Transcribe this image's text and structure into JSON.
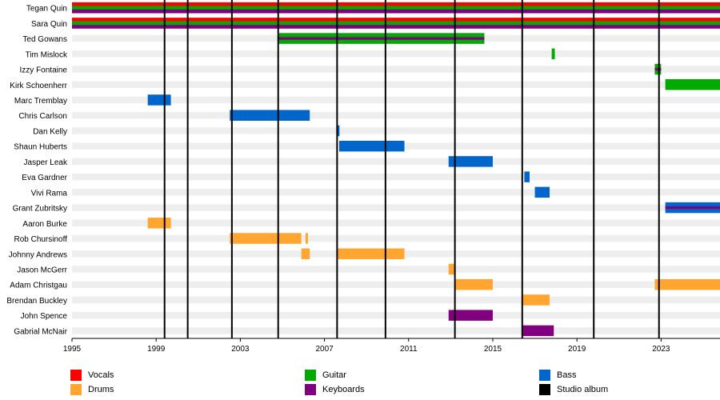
{
  "chart_data": {
    "type": "bar",
    "subtype": "timeline",
    "title": "",
    "xlabel": "",
    "ylabel": "",
    "xlim": [
      1995,
      2025.8
    ],
    "x_ticks": [
      "1995",
      "1999",
      "2003",
      "2007",
      "2011",
      "2015",
      "2019",
      "2023"
    ],
    "members": [
      "Tegan Quin",
      "Sara Quin",
      "Ted Gowans",
      "Tim Mislock",
      "Izzy Fontaine",
      "Kirk Schoenherr",
      "Marc Tremblay",
      "Chris Carlson",
      "Dan Kelly",
      "Shaun Huberts",
      "Jasper Leak",
      "Eva Gardner",
      "Vivi Rama",
      "Grant Zubritsky",
      "Aaron Burke",
      "Rob Chursinoff",
      "Johnny Andrews",
      "Jason McGerr",
      "Adam Christgau",
      "Brendan Buckley",
      "John Spence",
      "Gabrial McNair"
    ],
    "roles": {
      "Vocals": "#ff0000",
      "Guitar": "#00aa00",
      "Bass": "#0066cc",
      "Drums": "#ffa530",
      "Keyboards": "#800080",
      "Studio album": "#000000"
    },
    "legend_order": [
      "Vocals",
      "Guitar",
      "Bass",
      "Drums",
      "Keyboards",
      "Studio album"
    ],
    "studio_albums": [
      1999.4,
      2000.5,
      2002.6,
      2004.8,
      2007.6,
      2009.9,
      2013.2,
      2016.4,
      2019.8,
      2022.9
    ],
    "bars": [
      {
        "member": "Tegan Quin",
        "start": 1995,
        "end": 2025.8,
        "roles": [
          "Vocals",
          "Guitar",
          "Keyboards"
        ]
      },
      {
        "member": "Sara Quin",
        "start": 1995,
        "end": 2025.8,
        "roles": [
          "Vocals",
          "Guitar",
          "Keyboards"
        ]
      },
      {
        "member": "Ted Gowans",
        "start": 2004.8,
        "end": 2014.6,
        "roles": [
          "Guitar",
          "Keyboards"
        ]
      },
      {
        "member": "Tim Mislock",
        "start": 2017.8,
        "end": 2017.95,
        "roles": [
          "Guitar"
        ]
      },
      {
        "member": "Izzy Fontaine",
        "start": 2022.7,
        "end": 2023.0,
        "roles": [
          "Guitar",
          "Keyboards"
        ]
      },
      {
        "member": "Kirk Schoenherr",
        "start": 2023.2,
        "end": 2025.8,
        "roles": [
          "Guitar"
        ]
      },
      {
        "member": "Marc Tremblay",
        "start": 1998.6,
        "end": 1999.7,
        "roles": [
          "Bass"
        ]
      },
      {
        "member": "Chris Carlson",
        "start": 2002.5,
        "end": 2006.3,
        "roles": [
          "Bass"
        ]
      },
      {
        "member": "Dan Kelly",
        "start": 2007.6,
        "end": 2007.7,
        "roles": [
          "Bass"
        ]
      },
      {
        "member": "Shaun Huberts",
        "start": 2007.7,
        "end": 2010.8,
        "roles": [
          "Bass"
        ]
      },
      {
        "member": "Jasper Leak",
        "start": 2012.9,
        "end": 2015.0,
        "roles": [
          "Bass"
        ]
      },
      {
        "member": "Eva Gardner",
        "start": 2016.5,
        "end": 2016.75,
        "roles": [
          "Bass"
        ]
      },
      {
        "member": "Vivi Rama",
        "start": 2017.0,
        "end": 2017.7,
        "roles": [
          "Bass"
        ]
      },
      {
        "member": "Grant Zubritsky",
        "start": 2023.2,
        "end": 2025.8,
        "roles": [
          "Bass",
          "Keyboards"
        ]
      },
      {
        "member": "Aaron Burke",
        "start": 1998.6,
        "end": 1999.7,
        "roles": [
          "Drums"
        ]
      },
      {
        "member": "Rob Chursinoff",
        "start": 2002.5,
        "end": 2005.9,
        "roles": [
          "Drums"
        ]
      },
      {
        "member": "Rob Chursinoff",
        "start": 2006.1,
        "end": 2006.2,
        "roles": [
          "Drums"
        ]
      },
      {
        "member": "Johnny Andrews",
        "start": 2005.9,
        "end": 2006.3,
        "roles": [
          "Drums"
        ]
      },
      {
        "member": "Johnny Andrews",
        "start": 2007.6,
        "end": 2010.8,
        "roles": [
          "Drums"
        ]
      },
      {
        "member": "Jason McGerr",
        "start": 2012.9,
        "end": 2013.2,
        "roles": [
          "Drums"
        ]
      },
      {
        "member": "Adam Christgau",
        "start": 2013.2,
        "end": 2015.0,
        "roles": [
          "Drums"
        ]
      },
      {
        "member": "Adam Christgau",
        "start": 2022.7,
        "end": 2025.8,
        "roles": [
          "Drums"
        ]
      },
      {
        "member": "Brendan Buckley",
        "start": 2016.4,
        "end": 2017.7,
        "roles": [
          "Drums"
        ]
      },
      {
        "member": "John Spence",
        "start": 2012.9,
        "end": 2015.0,
        "roles": [
          "Keyboards"
        ]
      },
      {
        "member": "Gabrial McNair",
        "start": 2016.4,
        "end": 2017.9,
        "roles": [
          "Keyboards"
        ]
      }
    ]
  }
}
